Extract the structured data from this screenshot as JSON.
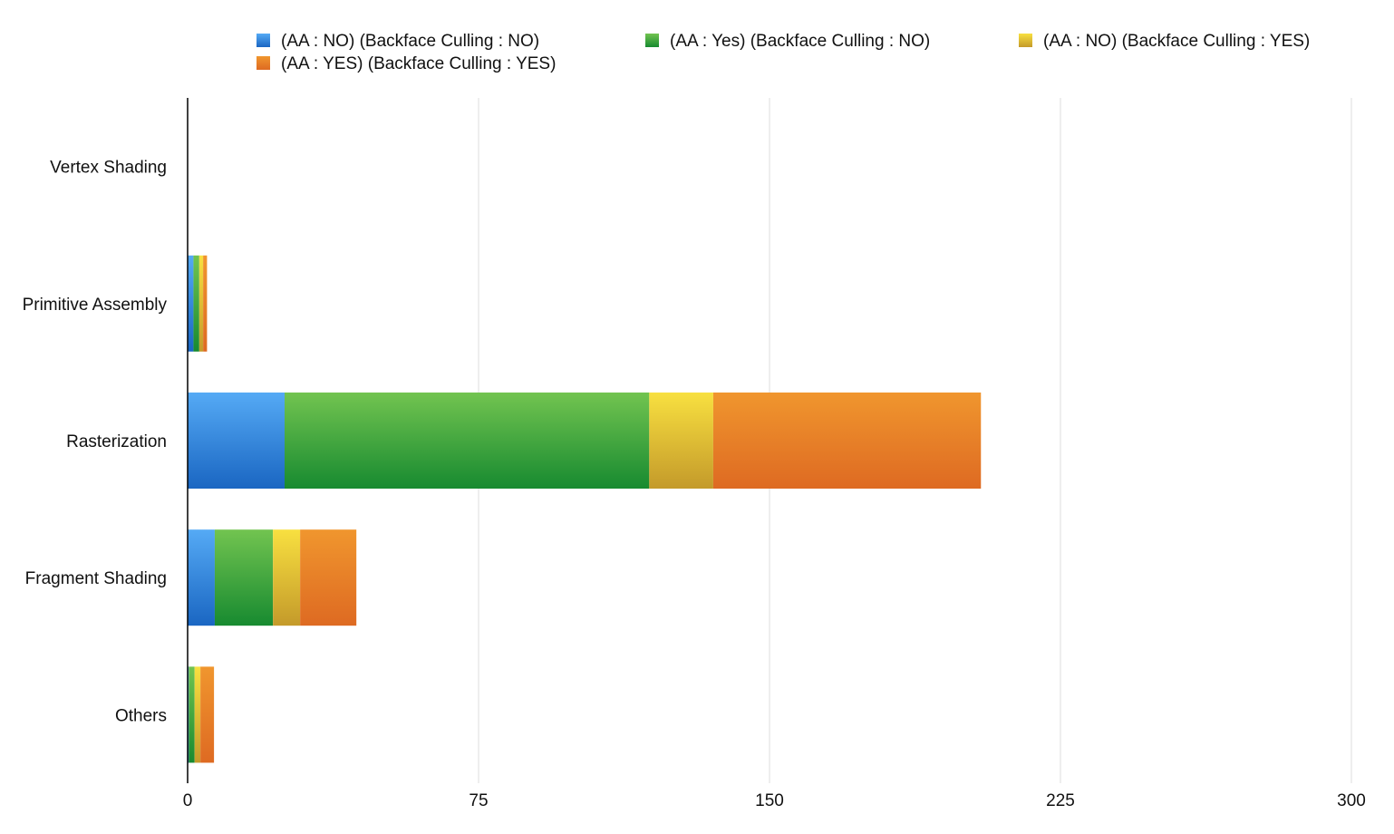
{
  "chart_data": {
    "type": "bar",
    "orientation": "horizontal",
    "stacked": true,
    "title": "",
    "xlabel": "",
    "ylabel": "",
    "xlim": [
      0,
      300
    ],
    "x_ticks": [
      0,
      75,
      150,
      225,
      300
    ],
    "x_tick_labels": [
      "0",
      "75",
      "150",
      "225",
      "300"
    ],
    "grid": "vertical",
    "legend_position": "top",
    "categories": [
      "Vertex Shading",
      "Primitive Assembly",
      "Rasterization",
      "Fragment Shading",
      "Others"
    ],
    "series": [
      {
        "name": "(AA : NO) (Backface Culling : NO)",
        "color_top": "#55aaf5",
        "color_bottom": "#1a66c2",
        "values": [
          0,
          1.5,
          25,
          7,
          0.3
        ]
      },
      {
        "name": "(AA : Yes) (Backface Culling : NO)",
        "color_top": "#72c450",
        "color_bottom": "#178a30",
        "values": [
          0,
          1.5,
          94,
          15,
          1.5
        ]
      },
      {
        "name": "(AA : NO) (Backface Culling : YES)",
        "color_top": "#f8e040",
        "color_bottom": "#c49a2a",
        "values": [
          0,
          1,
          16.5,
          7,
          1.5
        ]
      },
      {
        "name": "(AA : YES) (Backface Culling : YES)",
        "color_top": "#f0962e",
        "color_bottom": "#de6a22",
        "values": [
          0,
          1,
          69,
          14.5,
          3.5
        ]
      }
    ]
  }
}
